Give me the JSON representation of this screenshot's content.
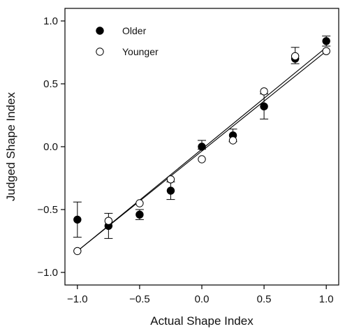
{
  "chart_data": {
    "type": "scatter",
    "xlabel": "Actual Shape Index",
    "ylabel": "Judged Shape Index",
    "xlim": [
      -1.1,
      1.1
    ],
    "ylim": [
      -1.1,
      1.1
    ],
    "x_ticks": [
      -1.0,
      -0.5,
      0.0,
      0.5,
      1.0
    ],
    "y_ticks": [
      -1.0,
      -0.5,
      0.0,
      0.5,
      1.0
    ],
    "x_tick_labels": [
      "−1.0",
      "−0.5",
      "0.0",
      "0.5",
      "1.0"
    ],
    "y_tick_labels": [
      "−1.0",
      "−0.5",
      "0.0",
      "0.5",
      "1.0"
    ],
    "grid": false,
    "legend_position": "top-left",
    "series": [
      {
        "name": "Older",
        "marker": "filled-circle",
        "color": "#000000",
        "x": [
          -1.0,
          -0.75,
          -0.5,
          -0.25,
          0.0,
          0.25,
          0.5,
          0.75,
          1.0
        ],
        "y": [
          -0.58,
          -0.63,
          -0.54,
          -0.35,
          0.0,
          0.09,
          0.32,
          0.7,
          0.84
        ],
        "error_low": [
          -0.72,
          -0.73,
          -0.58,
          -0.42,
          -0.02,
          0.04,
          0.22,
          0.66,
          0.8
        ],
        "error_high": [
          -0.44,
          -0.53,
          -0.5,
          -0.28,
          0.05,
          0.14,
          0.42,
          0.79,
          0.88
        ],
        "fit_line": {
          "x": [
            -1.0,
            1.0
          ],
          "y": [
            -0.83,
            0.79
          ]
        }
      },
      {
        "name": "Younger",
        "marker": "open-circle",
        "color": "#000000",
        "x": [
          -1.0,
          -0.75,
          -0.5,
          -0.25,
          0.0,
          0.25,
          0.5,
          0.75,
          1.0
        ],
        "y": [
          -0.83,
          -0.59,
          -0.45,
          -0.26,
          -0.1,
          0.05,
          0.44,
          0.72,
          0.76
        ],
        "fit_line": {
          "x": [
            -1.0,
            1.0
          ],
          "y": [
            -0.83,
            0.76
          ]
        }
      }
    ]
  }
}
